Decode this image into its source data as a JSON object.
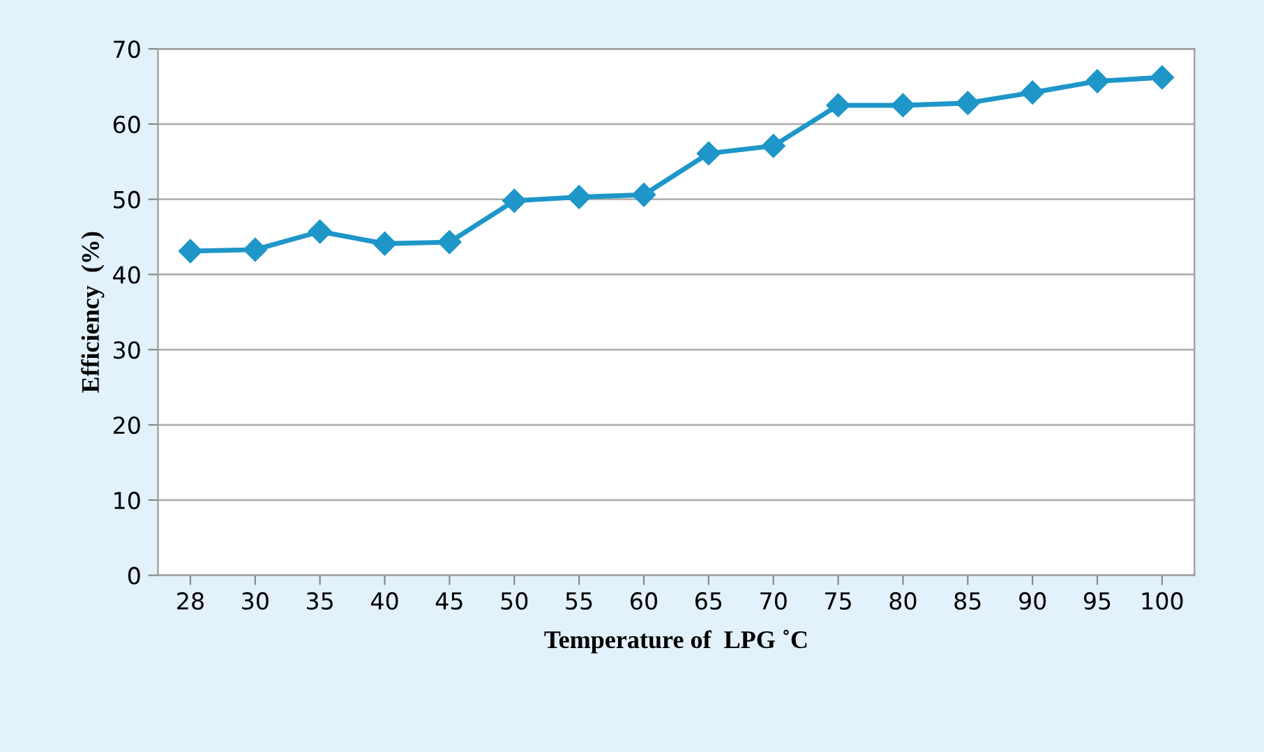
{
  "chart_data": {
    "type": "line",
    "xlabel": "Temperature of  LPG ˚C",
    "ylabel": "Efficiency  (%)",
    "categories": [
      "28",
      "30",
      "35",
      "40",
      "45",
      "50",
      "55",
      "60",
      "65",
      "70",
      "75",
      "80",
      "85",
      "90",
      "95",
      "100"
    ],
    "series": [
      {
        "color": "#1e96c8",
        "values": [
          43.1,
          43.3,
          45.7,
          44.1,
          44.3,
          49.8,
          50.3,
          50.6,
          56.1,
          57.1,
          62.5,
          62.5,
          62.8,
          64.2,
          65.7,
          66.2
        ]
      }
    ],
    "ylim": [
      0,
      70
    ],
    "yticks": [
      0,
      10,
      20,
      30,
      40,
      50,
      60,
      70
    ],
    "grid": "y",
    "marker": "diamond",
    "line_style": "solid"
  }
}
